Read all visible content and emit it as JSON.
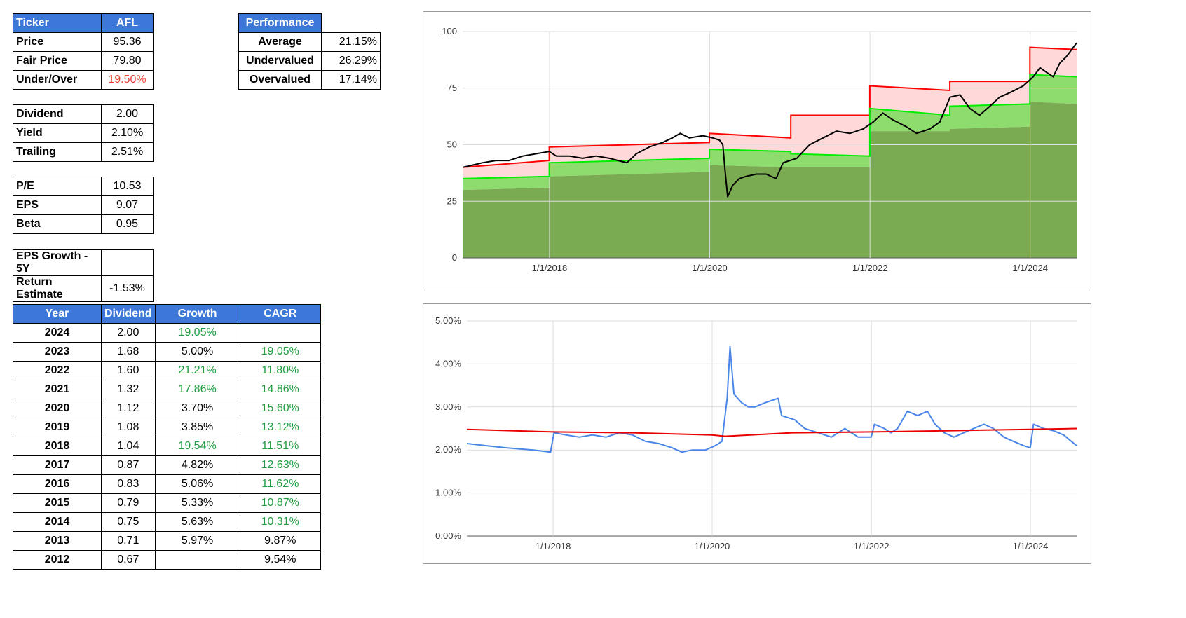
{
  "ticker_table": {
    "header": {
      "label": "Ticker",
      "value": "AFL"
    },
    "rows": [
      {
        "label": "Price",
        "value": "95.36"
      },
      {
        "label": "Fair Price",
        "value": "79.80"
      },
      {
        "label": "Under/Over",
        "value": "19.50%"
      }
    ]
  },
  "dividend_table": {
    "rows": [
      {
        "label": "Dividend",
        "value": "2.00"
      },
      {
        "label": "Yield",
        "value": "2.10%"
      },
      {
        "label": "Trailing",
        "value": "2.51%"
      }
    ]
  },
  "pe_table": {
    "rows": [
      {
        "label": "P/E",
        "value": "10.53"
      },
      {
        "label": "EPS",
        "value": "9.07"
      },
      {
        "label": "Beta",
        "value": "0.95"
      }
    ]
  },
  "growth_table": {
    "rows": [
      {
        "label": "EPS Growth - 5Y",
        "value": ""
      },
      {
        "label": "Return Estimate",
        "value": "-1.53%"
      }
    ]
  },
  "performance_table": {
    "header": "Performance",
    "rows": [
      {
        "label": "Average",
        "value": "21.15%"
      },
      {
        "label": "Undervalued",
        "value": "26.29%"
      },
      {
        "label": "Overvalued",
        "value": "17.14%"
      }
    ]
  },
  "history_table": {
    "headers": [
      "Year",
      "Dividend",
      "Growth",
      "CAGR"
    ],
    "rows": [
      {
        "year": "2024",
        "dividend": "2.00",
        "growth": "19.05%",
        "growth_color": "green",
        "cagr": "",
        "cagr_color": ""
      },
      {
        "year": "2023",
        "dividend": "1.68",
        "growth": "5.00%",
        "growth_color": "",
        "cagr": "19.05%",
        "cagr_color": "green"
      },
      {
        "year": "2022",
        "dividend": "1.60",
        "growth": "21.21%",
        "growth_color": "green",
        "cagr": "11.80%",
        "cagr_color": "green"
      },
      {
        "year": "2021",
        "dividend": "1.32",
        "growth": "17.86%",
        "growth_color": "green",
        "cagr": "14.86%",
        "cagr_color": "green"
      },
      {
        "year": "2020",
        "dividend": "1.12",
        "growth": "3.70%",
        "growth_color": "",
        "cagr": "15.60%",
        "cagr_color": "green"
      },
      {
        "year": "2019",
        "dividend": "1.08",
        "growth": "3.85%",
        "growth_color": "",
        "cagr": "13.12%",
        "cagr_color": "green"
      },
      {
        "year": "2018",
        "dividend": "1.04",
        "growth": "19.54%",
        "growth_color": "green",
        "cagr": "11.51%",
        "cagr_color": "green"
      },
      {
        "year": "2017",
        "dividend": "0.87",
        "growth": "4.82%",
        "growth_color": "",
        "cagr": "12.63%",
        "cagr_color": "green"
      },
      {
        "year": "2016",
        "dividend": "0.83",
        "growth": "5.06%",
        "growth_color": "",
        "cagr": "11.62%",
        "cagr_color": "green"
      },
      {
        "year": "2015",
        "dividend": "0.79",
        "growth": "5.33%",
        "growth_color": "",
        "cagr": "10.87%",
        "cagr_color": "green"
      },
      {
        "year": "2014",
        "dividend": "0.75",
        "growth": "5.63%",
        "growth_color": "",
        "cagr": "10.31%",
        "cagr_color": "green"
      },
      {
        "year": "2013",
        "dividend": "0.71",
        "growth": "5.97%",
        "growth_color": "",
        "cagr": "9.87%",
        "cagr_color": ""
      },
      {
        "year": "2012",
        "dividend": "0.67",
        "growth": "",
        "growth_color": "",
        "cagr": "9.54%",
        "cagr_color": ""
      }
    ]
  },
  "colors": {
    "header_bg": "#3d78d8",
    "negative": "#ea4335",
    "positive": "#1e9e3e",
    "price_line": "#000000",
    "upper_band": "#ff0000",
    "fair_line": "#00ee00",
    "low_fill": "#7aab52",
    "yield_line": "#4a86e8",
    "avg_yield_line": "#ea0000"
  },
  "chart_data": [
    {
      "type": "area",
      "xlim": [
        "2016-12-01",
        "2024-07-31"
      ],
      "ylim": [
        0,
        100
      ],
      "yticks": [
        "0",
        "25",
        "50",
        "75",
        "100"
      ],
      "xtick_labels": [
        "1/1/2018",
        "1/1/2020",
        "1/1/2022",
        "1/1/2024"
      ],
      "grid": true,
      "series": [
        {
          "role": "price",
          "x": [
            "2016-12-01",
            "2017-01-15",
            "2017-03-01",
            "2017-05-01",
            "2017-07-01",
            "2017-09-01",
            "2017-11-01",
            "2017-12-31",
            "2018-02-01",
            "2018-04-01",
            "2018-06-01",
            "2018-08-01",
            "2018-10-01",
            "2018-12-20",
            "2019-02-01",
            "2019-04-01",
            "2019-06-01",
            "2019-07-15",
            "2019-08-20",
            "2019-10-01",
            "2019-12-01",
            "2020-01-15",
            "2020-02-15",
            "2020-03-01",
            "2020-03-12",
            "2020-03-23",
            "2020-04-15",
            "2020-05-15",
            "2020-06-15",
            "2020-08-01",
            "2020-09-15",
            "2020-10-30",
            "2020-12-01",
            "2021-02-01",
            "2021-04-01",
            "2021-06-01",
            "2021-08-01",
            "2021-10-01",
            "2021-12-01",
            "2022-01-15",
            "2022-03-01",
            "2022-04-15",
            "2022-06-15",
            "2022-08-01",
            "2022-10-01",
            "2022-11-15",
            "2023-01-01",
            "2023-02-15",
            "2023-04-01",
            "2023-05-15",
            "2023-07-01",
            "2023-08-15",
            "2023-10-01",
            "2023-12-01",
            "2024-01-15",
            "2024-02-15",
            "2024-03-15",
            "2024-04-15",
            "2024-05-15",
            "2024-06-15",
            "2024-07-31"
          ],
          "y": [
            40,
            41,
            42,
            43,
            43,
            45,
            46,
            47,
            45,
            45,
            44,
            45,
            44,
            42,
            46,
            49,
            51,
            53,
            55,
            53,
            54,
            53,
            52,
            50,
            38,
            27,
            32,
            35,
            36,
            37,
            37,
            35,
            42,
            44,
            50,
            53,
            56,
            55,
            57,
            60,
            64,
            61,
            58,
            55,
            57,
            60,
            71,
            72,
            66,
            63,
            67,
            71,
            73,
            76,
            80,
            84,
            82,
            80,
            86,
            89,
            95
          ]
        },
        {
          "role": "upper_band",
          "x": [
            "2016-12-01",
            "2017-12-31",
            "2017-12-31",
            "2019-12-31",
            "2019-12-31",
            "2021-01-05",
            "2021-01-05",
            "2021-12-31",
            "2021-12-31",
            "2022-12-31",
            "2022-12-31",
            "2023-12-31",
            "2023-12-31",
            "2024-07-31"
          ],
          "y": [
            40,
            43,
            49,
            51,
            55,
            53,
            63,
            63,
            76,
            74,
            78,
            78,
            93,
            92
          ]
        },
        {
          "role": "fair_value",
          "x": [
            "2016-12-01",
            "2017-12-31",
            "2017-12-31",
            "2019-12-31",
            "2019-12-31",
            "2021-01-05",
            "2021-01-05",
            "2021-12-31",
            "2021-12-31",
            "2022-12-31",
            "2022-12-31",
            "2023-12-31",
            "2023-12-31",
            "2024-07-31"
          ],
          "y": [
            35,
            36,
            42,
            44,
            48,
            47,
            46,
            45,
            66,
            63,
            67,
            68,
            81,
            80
          ]
        },
        {
          "role": "lower_band",
          "x": [
            "2016-12-01",
            "2017-12-31",
            "2017-12-31",
            "2019-12-31",
            "2019-12-31",
            "2021-01-05",
            "2021-01-05",
            "2021-12-31",
            "2021-12-31",
            "2022-12-31",
            "2022-12-31",
            "2023-12-31",
            "2023-12-31",
            "2024-07-31"
          ],
          "y": [
            30,
            31,
            36,
            38,
            41,
            40,
            40,
            40,
            56,
            56,
            57,
            58,
            69,
            68
          ]
        }
      ]
    },
    {
      "type": "line",
      "xlim": [
        "2016-12-01",
        "2024-07-31"
      ],
      "ylim": [
        0,
        5
      ],
      "yticks": [
        "0.00%",
        "1.00%",
        "2.00%",
        "3.00%",
        "4.00%",
        "5.00%"
      ],
      "xtick_labels": [
        "1/1/2018",
        "1/1/2020",
        "1/1/2022",
        "1/1/2024"
      ],
      "grid": true,
      "series": [
        {
          "role": "yield",
          "x": [
            "2016-12-01",
            "2017-03-01",
            "2017-06-01",
            "2017-10-01",
            "2017-12-20",
            "2018-01-05",
            "2018-03-01",
            "2018-05-01",
            "2018-07-01",
            "2018-09-01",
            "2018-11-01",
            "2018-12-31",
            "2019-03-01",
            "2019-05-01",
            "2019-07-01",
            "2019-08-15",
            "2019-10-01",
            "2019-12-01",
            "2020-01-15",
            "2020-02-15",
            "2020-03-10",
            "2020-03-23",
            "2020-04-10",
            "2020-05-15",
            "2020-06-15",
            "2020-07-15",
            "2020-09-01",
            "2020-10-30",
            "2020-11-15",
            "2021-01-15",
            "2021-03-01",
            "2021-05-01",
            "2021-07-01",
            "2021-09-01",
            "2021-11-01",
            "2021-12-31",
            "2022-01-15",
            "2022-03-01",
            "2022-04-01",
            "2022-05-01",
            "2022-06-15",
            "2022-08-01",
            "2022-09-15",
            "2022-10-20",
            "2022-12-01",
            "2023-01-15",
            "2023-03-01",
            "2023-04-15",
            "2023-06-01",
            "2023-07-15",
            "2023-09-01",
            "2023-10-15",
            "2023-12-01",
            "2023-12-31",
            "2024-01-15",
            "2024-03-01",
            "2024-04-15",
            "2024-06-01",
            "2024-07-31"
          ],
          "y": [
            2.15,
            2.1,
            2.05,
            2.0,
            1.95,
            2.4,
            2.35,
            2.3,
            2.35,
            2.3,
            2.4,
            2.35,
            2.2,
            2.15,
            2.05,
            1.95,
            2.0,
            2.0,
            2.1,
            2.2,
            3.2,
            4.4,
            3.3,
            3.1,
            3.0,
            3.0,
            3.1,
            3.2,
            2.8,
            2.7,
            2.5,
            2.4,
            2.3,
            2.5,
            2.3,
            2.3,
            2.6,
            2.5,
            2.4,
            2.5,
            2.9,
            2.8,
            2.9,
            2.6,
            2.4,
            2.3,
            2.4,
            2.5,
            2.6,
            2.5,
            2.3,
            2.2,
            2.1,
            2.05,
            2.6,
            2.5,
            2.45,
            2.35,
            2.1
          ]
        },
        {
          "role": "average_yield",
          "x": [
            "2016-12-01",
            "2018-01-01",
            "2019-01-01",
            "2020-01-01",
            "2020-03-01",
            "2021-01-01",
            "2022-01-01",
            "2023-01-01",
            "2024-01-01",
            "2024-07-31"
          ],
          "y": [
            2.48,
            2.42,
            2.4,
            2.35,
            2.32,
            2.4,
            2.42,
            2.45,
            2.48,
            2.5
          ]
        }
      ]
    }
  ]
}
